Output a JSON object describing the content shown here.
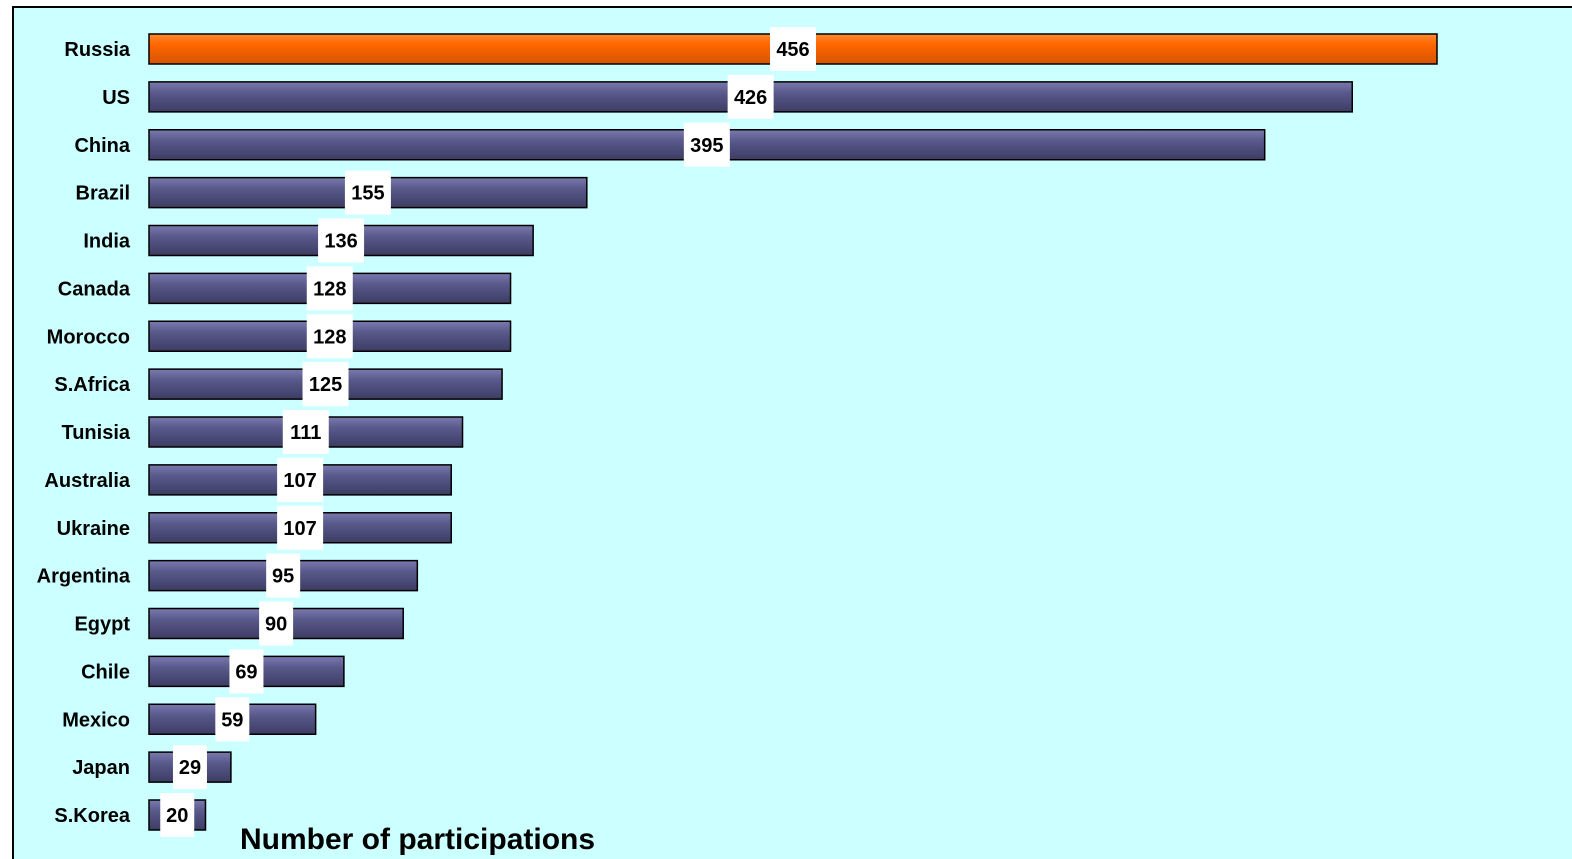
{
  "chart_data": {
    "type": "bar",
    "orientation": "horizontal",
    "categories": [
      "Russia",
      "US",
      "China",
      "Brazil",
      "India",
      "Canada",
      "Morocco",
      "S.Africa",
      "Tunisia",
      "Australia",
      "Ukraine",
      "Argentina",
      "Egypt",
      "Chile",
      "Mexico",
      "Japan",
      "S.Korea"
    ],
    "values": [
      456,
      426,
      395,
      155,
      136,
      128,
      128,
      125,
      111,
      107,
      107,
      95,
      90,
      69,
      59,
      29,
      20
    ],
    "xlabel": "Number of participations",
    "ylabel": "",
    "title": "",
    "xlim": [
      0,
      456
    ],
    "highlight_index": 0,
    "data_labels": true,
    "grid": false,
    "legend": "none"
  },
  "colors": {
    "background": "#ccffff",
    "bar": "#5a5a8c",
    "bar_light": "#7a7ab0",
    "bar_dark": "#3c3c64",
    "highlight": "#ff6600",
    "highlight_light": "#ff8a2e",
    "highlight_dark": "#d45500",
    "label_box": "#ffffff"
  }
}
